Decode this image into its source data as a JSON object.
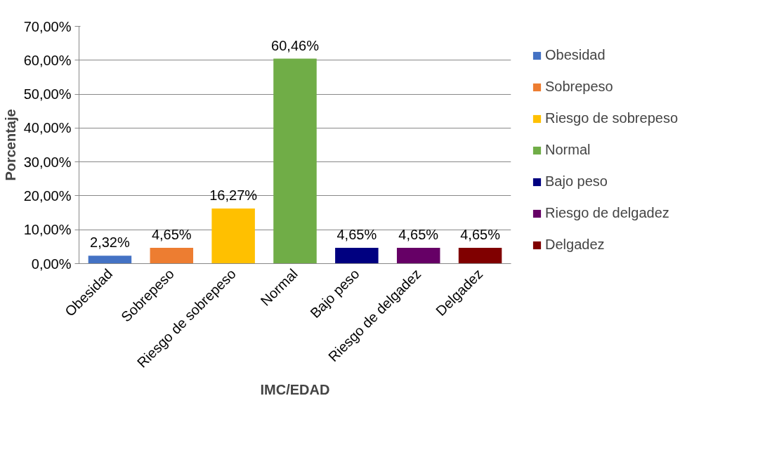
{
  "chart_data": {
    "type": "bar",
    "xlabel": "IMC/EDAD",
    "ylabel": "Porcentaje",
    "categories": [
      "Obesidad",
      "Sobrepeso",
      "Riesgo de sobrepeso",
      "Normal",
      "Bajo peso",
      "Riesgo de delgadez",
      "Delgadez"
    ],
    "series": [
      {
        "name": "Obesidad",
        "color": "#4472c4",
        "values": [
          2.32,
          null,
          null,
          null,
          null,
          null,
          null
        ],
        "value_labels": [
          "2,32%",
          null,
          null,
          null,
          null,
          null,
          null
        ]
      },
      {
        "name": "Sobrepeso",
        "color": "#ed7d31",
        "values": [
          null,
          4.65,
          null,
          null,
          null,
          null,
          null
        ],
        "value_labels": [
          null,
          "4,65%",
          null,
          null,
          null,
          null,
          null
        ]
      },
      {
        "name": "Riesgo de sobrepeso",
        "color": "#ffc000",
        "values": [
          null,
          null,
          16.27,
          null,
          null,
          null,
          null
        ],
        "value_labels": [
          null,
          null,
          "16,27%",
          null,
          null,
          null,
          null
        ]
      },
      {
        "name": "Normal",
        "color": "#70ad47",
        "values": [
          null,
          null,
          null,
          60.46,
          null,
          null,
          null
        ],
        "value_labels": [
          null,
          null,
          null,
          "60,46%",
          null,
          null,
          null
        ]
      },
      {
        "name": "Bajo peso",
        "color": "#000080",
        "values": [
          null,
          null,
          null,
          null,
          4.65,
          null,
          null
        ],
        "value_labels": [
          null,
          null,
          null,
          null,
          "4,65%",
          null,
          null
        ]
      },
      {
        "name": "Riesgo de delgadez",
        "color": "#660066",
        "values": [
          null,
          null,
          null,
          null,
          null,
          4.65,
          null
        ],
        "value_labels": [
          null,
          null,
          null,
          null,
          null,
          "4,65%",
          null
        ]
      },
      {
        "name": "Delgadez",
        "color": "#800000",
        "values": [
          null,
          null,
          null,
          null,
          null,
          null,
          4.65
        ],
        "value_labels": [
          null,
          null,
          null,
          null,
          null,
          null,
          "4,65%"
        ]
      }
    ],
    "ylim": [
      0,
      70
    ],
    "yticks": [
      {
        "value": 0,
        "label": "0,00%"
      },
      {
        "value": 10,
        "label": "10,00%"
      },
      {
        "value": 20,
        "label": "20,00%"
      },
      {
        "value": 30,
        "label": "30,00%"
      },
      {
        "value": 40,
        "label": "40,00%"
      },
      {
        "value": 50,
        "label": "50,00%"
      },
      {
        "value": 60,
        "label": "60,00%"
      },
      {
        "value": 70,
        "label": "70,00%"
      }
    ],
    "grid": "y",
    "legend": "right"
  }
}
